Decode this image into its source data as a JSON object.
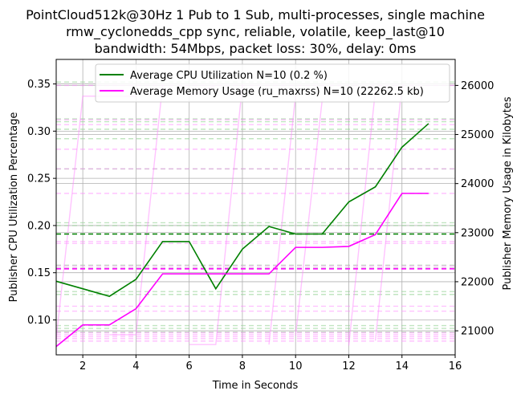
{
  "chart_data": {
    "type": "line",
    "title": "PointCloud512k@30Hz 1 Pub to 1 Sub, multi-processes, single machine\nrmw_cyclonedds_cpp sync, reliable, volatile, keep_last@10\nbandwidth: 54Mbps, packet loss: 30%, delay: 0ms",
    "title_lines": [
      "PointCloud512k@30Hz 1 Pub to 1 Sub, multi-processes, single machine",
      "rmw_cyclonedds_cpp sync, reliable, volatile, keep_last@10",
      "bandwidth: 54Mbps, packet loss: 30%, delay: 0ms"
    ],
    "xlabel": "Time in Seconds",
    "ylabel_left": "Publisher CPU Utilization Percentage",
    "ylabel_right": "Publisher Memory Usage in Kilobytes",
    "xlim": [
      1,
      16
    ],
    "ylim_left": [
      0.063,
      0.376
    ],
    "ylim_right": [
      20510,
      26530
    ],
    "grid": true,
    "legend_placement": "upper center",
    "x_ticks": [
      2,
      4,
      6,
      8,
      10,
      12,
      14,
      16
    ],
    "y_left_ticks": [
      0.1,
      0.15,
      0.2,
      0.25,
      0.3,
      0.35
    ],
    "y_right_ticks": [
      21000,
      22000,
      23000,
      24000,
      25000,
      26000
    ],
    "series": [
      {
        "name": "Average CPU Utilization N=10 (0.2 %)",
        "axis": "left",
        "color": "#008000",
        "x": [
          1,
          2,
          3,
          4,
          5,
          6,
          7,
          8,
          9,
          10,
          11,
          12,
          13,
          14,
          15
        ],
        "y": [
          0.141,
          0.133,
          0.125,
          0.143,
          0.183,
          0.183,
          0.133,
          0.175,
          0.199,
          0.191,
          0.191,
          0.225,
          0.241,
          0.283,
          0.308
        ],
        "mean": 0.191
      },
      {
        "name": "Average Memory Usage (ru_maxrss) N=10 (22262.5 kb)",
        "axis": "right",
        "color": "#ff00ff",
        "x": [
          1,
          2,
          3,
          4,
          5,
          6,
          7,
          8,
          9,
          10,
          11,
          12,
          13,
          14,
          15
        ],
        "y": [
          20680,
          21120,
          21120,
          21450,
          22160,
          22160,
          22160,
          22160,
          22160,
          22700,
          22700,
          22720,
          22960,
          23800,
          23800
        ],
        "mean": 22262.5
      }
    ],
    "background_runs": {
      "cpu_color": "#90d090",
      "mem_color": "#ff88ff",
      "cpu_levels": [
        0.087,
        0.091,
        0.094,
        0.127,
        0.13,
        0.155,
        0.158,
        0.2,
        0.203,
        0.26,
        0.292,
        0.302,
        0.31,
        0.313,
        0.352
      ],
      "mem_levels": [
        20790,
        20840,
        20880,
        20920,
        20960,
        21400,
        21500,
        22280,
        22320,
        22780,
        22820,
        23800,
        24300,
        24700,
        25200,
        25300,
        26000
      ],
      "mem_ramps": [
        {
          "x": [
            1,
            2,
            4
          ],
          "y": [
            20840,
            25780,
            25780
          ]
        },
        {
          "x": [
            3,
            4,
            5
          ],
          "y": [
            20920,
            20920,
            26000
          ]
        },
        {
          "x": [
            6,
            7
          ],
          "y": [
            25780,
            26000
          ]
        },
        {
          "x": [
            6,
            7,
            8
          ],
          "y": [
            20720,
            20720,
            26000
          ]
        },
        {
          "x": [
            9,
            10
          ],
          "y": [
            20720,
            25800
          ]
        },
        {
          "x": [
            10,
            11
          ],
          "y": [
            20900,
            25700
          ]
        },
        {
          "x": [
            12,
            13
          ],
          "y": [
            20700,
            25900
          ]
        },
        {
          "x": [
            13,
            14
          ],
          "y": [
            20800,
            26000
          ]
        }
      ]
    }
  }
}
